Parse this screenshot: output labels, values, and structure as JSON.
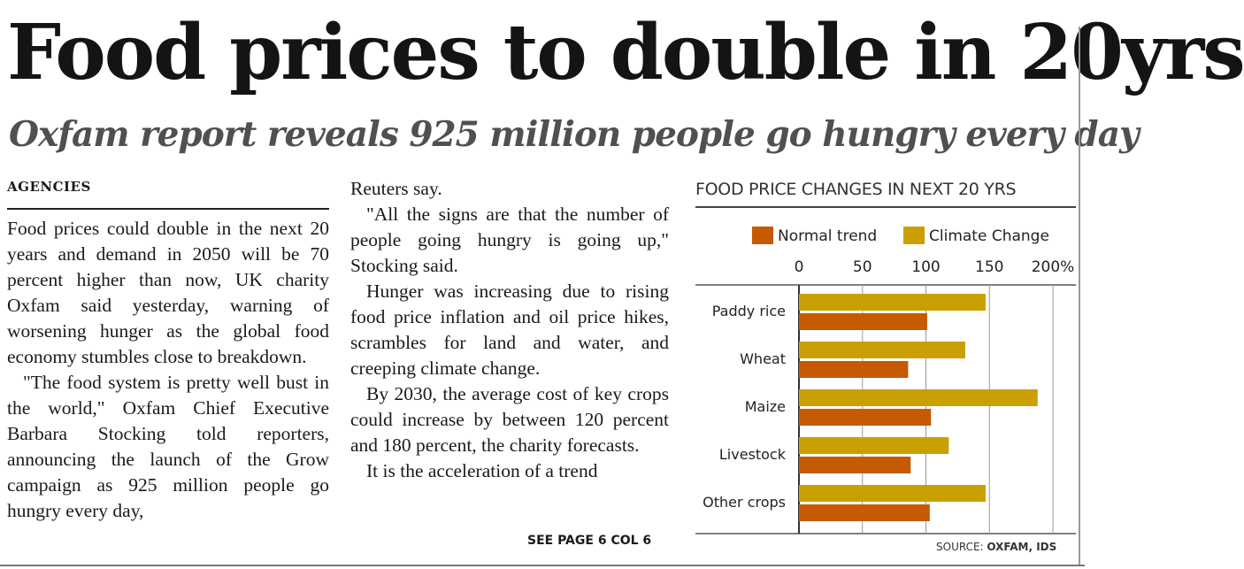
{
  "article": {
    "headline": "Food prices to double in 20yrs",
    "subhead": "Oxfam report reveals 925 million people go hungry every day",
    "byline": "AGENCIES",
    "column1": [
      "Food prices could double in the next 20 years and demand in 2050 will be 70 percent higher than now, UK charity Oxfam said yesterday, warning of worsening hunger as the global food economy stumbles close to breakdown.",
      "\"The food system is pretty well bust in the world,\" Oxfam Chief Executive Barbara Stocking told reporters, announcing the launch of the Grow campaign as 925 million people go hungry every day,"
    ],
    "column2": [
      "Reuters say.",
      "\"All the signs are that the number of people going hungry is going up,\" Stocking said.",
      "Hunger was increasing due to rising food price inflation and oil price hikes, scrambles for land and water, and creeping climate change.",
      "By 2030, the average cost of key crops could increase by between 120 percent and 180 percent, the charity forecasts.",
      "It is the acceleration of a trend"
    ],
    "continuation": "SEE PAGE 6 COL 6"
  },
  "chart_data": {
    "type": "bar",
    "orientation": "horizontal",
    "title": "FOOD PRICE CHANGES IN NEXT 20 YRS",
    "categories": [
      "Paddy rice",
      "Wheat",
      "Maize",
      "Livestock",
      "Other crops"
    ],
    "series": [
      {
        "name": "Climate Change",
        "color": "#c9a000",
        "values": [
          147,
          131,
          188,
          118,
          147
        ]
      },
      {
        "name": "Normal trend",
        "color": "#c65a00",
        "values": [
          101,
          86,
          104,
          88,
          103
        ]
      }
    ],
    "xlim": [
      0,
      200
    ],
    "ticks": [
      "0",
      "50",
      "100",
      "150",
      "200%"
    ],
    "tick_values": [
      0,
      50,
      100,
      150,
      200
    ],
    "legend_order": [
      "Normal trend",
      "Climate Change"
    ],
    "legend_position": "top",
    "grid": true,
    "source_prefix": "SOURCE: ",
    "source_name": "OXFAM, IDS"
  }
}
